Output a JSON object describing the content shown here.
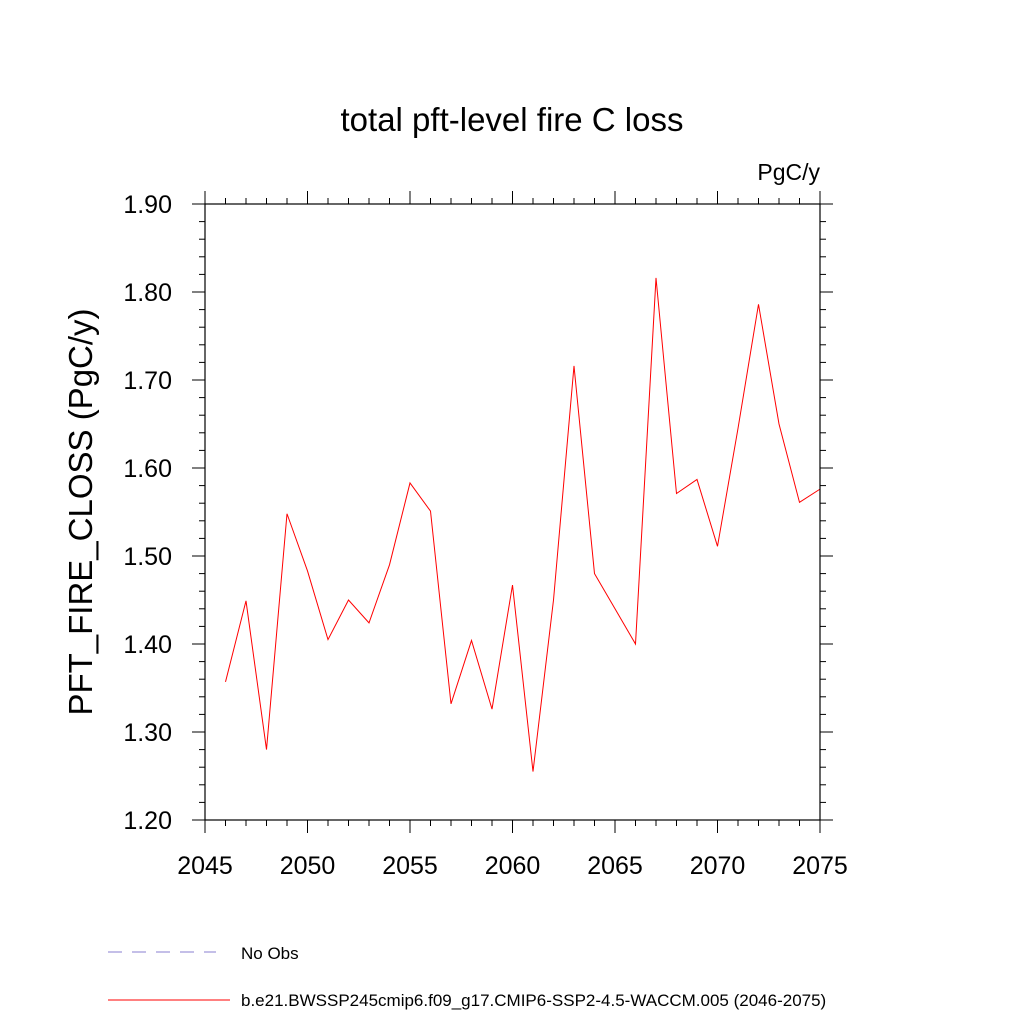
{
  "chart_data": {
    "type": "line",
    "title": "total pft-level fire C loss",
    "units_label": "PgC/y",
    "xlabel": "",
    "ylabel": "PFT_FIRE_CLOSS  (PgC/y)",
    "xlim": [
      2045,
      2075
    ],
    "ylim": [
      1.2,
      1.9
    ],
    "x_ticks": [
      2045,
      2050,
      2055,
      2060,
      2065,
      2070,
      2075
    ],
    "y_ticks": [
      "1.20",
      "1.30",
      "1.40",
      "1.50",
      "1.60",
      "1.70",
      "1.80",
      "1.90"
    ],
    "x": [
      2046,
      2047,
      2048,
      2049,
      2050,
      2051,
      2052,
      2053,
      2054,
      2055,
      2056,
      2057,
      2058,
      2059,
      2060,
      2061,
      2062,
      2063,
      2064,
      2065,
      2066,
      2067,
      2068,
      2069,
      2070,
      2071,
      2072,
      2073,
      2074,
      2075
    ],
    "series": [
      {
        "name": "b.e21.BWSSP245cmip6.f09_g17.CMIP6-SSP2-4.5-WACCM.005 (2046-2075)",
        "color": "#ff0000",
        "values": [
          1.357,
          1.449,
          1.28,
          1.548,
          1.483,
          1.405,
          1.45,
          1.424,
          1.49,
          1.583,
          1.551,
          1.332,
          1.404,
          1.326,
          1.467,
          1.255,
          1.45,
          1.716,
          1.48,
          1.44,
          1.4,
          1.816,
          1.571,
          1.587,
          1.511,
          1.645,
          1.786,
          1.65,
          1.561,
          1.576
        ]
      }
    ],
    "legend": [
      {
        "label": "No Obs",
        "style": "dashed",
        "color": "#8a7fd0"
      },
      {
        "label": "b.e21.BWSSP245cmip6.f09_g17.CMIP6-SSP2-4.5-WACCM.005 (2046-2075)",
        "style": "solid",
        "color": "#ff0000"
      }
    ],
    "legend_position": "bottom"
  }
}
